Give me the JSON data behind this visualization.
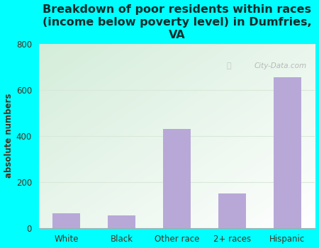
{
  "categories": [
    "White",
    "Black",
    "Other race",
    "2+ races",
    "Hispanic"
  ],
  "values": [
    65,
    55,
    430,
    150,
    655
  ],
  "bar_color": "#b8a8d8",
  "title": "Breakdown of poor residents within races\n(income below poverty level) in Dumfries,\nVA",
  "ylabel": "absolute numbers",
  "ylim": [
    0,
    800
  ],
  "yticks": [
    0,
    200,
    400,
    600,
    800
  ],
  "background_outer": "#00ffff",
  "title_fontsize": 11.5,
  "title_color": "#0d2b2b",
  "axis_label_color": "#4a3020",
  "tick_label_color": "#4a3020",
  "grid_color": "#d8e8d8",
  "watermark_text": "City-Data.com"
}
